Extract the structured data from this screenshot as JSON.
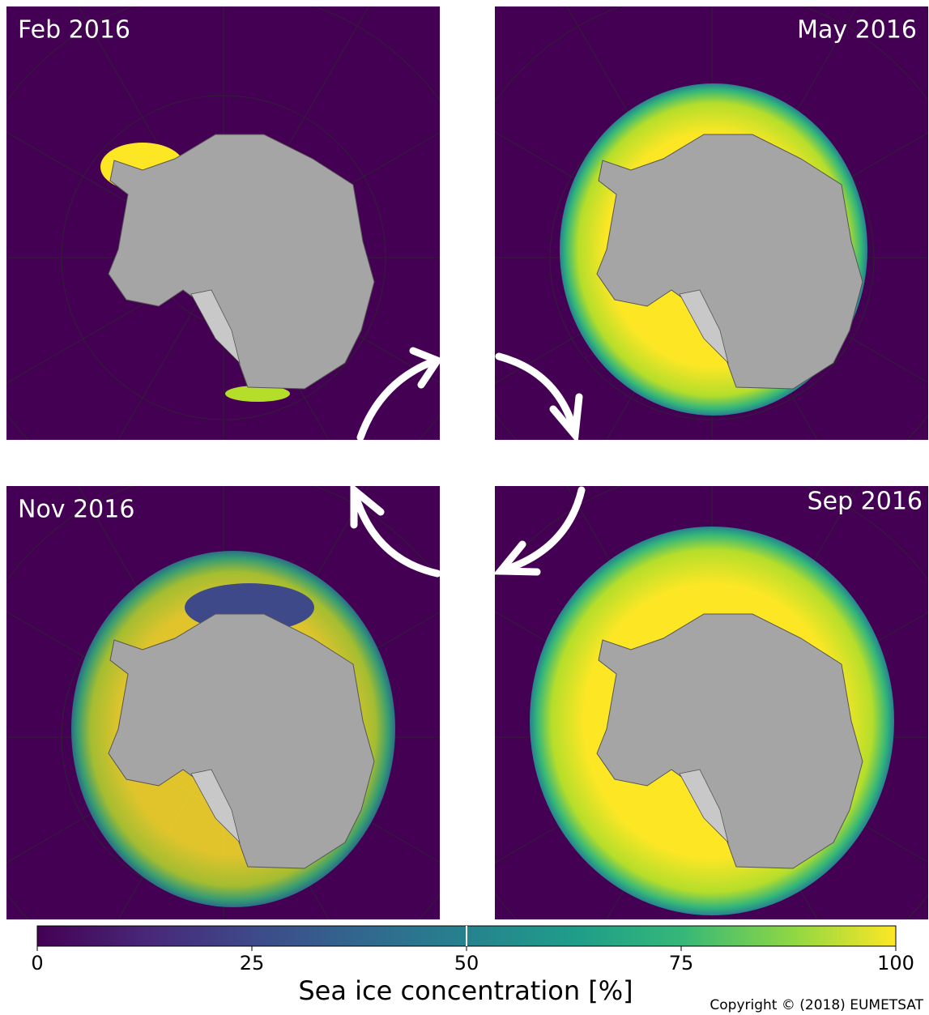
{
  "panels": [
    {
      "label": "Feb 2016"
    },
    {
      "label": "May 2016"
    },
    {
      "label": "Nov 2016"
    },
    {
      "label": "Sep 2016"
    }
  ],
  "colorbar": {
    "label": "Sea ice concentration [%]",
    "range": [
      0,
      100
    ],
    "ticks": [
      0,
      25,
      50,
      75,
      100
    ],
    "contour_level": 50
  },
  "copyright": "Copyright © (2018) EUMETSAT"
}
